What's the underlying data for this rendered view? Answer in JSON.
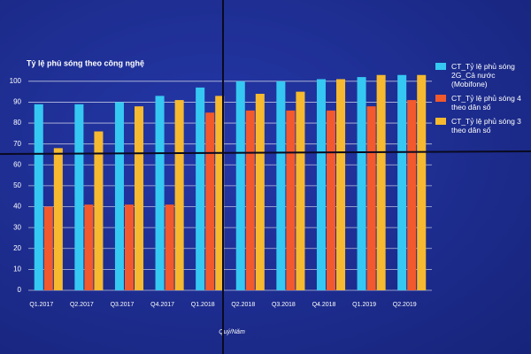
{
  "chart_data": {
    "type": "bar",
    "title": "Tỷ lệ phủ sóng theo công nghệ",
    "x_label": "Quý/Năm",
    "categories": [
      "Q1.2017",
      "Q2.2017",
      "Q3.2017",
      "Q4.2017",
      "Q1.2018",
      "Q2.2018",
      "Q3.2018",
      "Q4.2018",
      "Q1.2019",
      "Q2.2019"
    ],
    "series": [
      {
        "name": "CT_Tỷ lệ phủ sóng 2G_Cả nước (Mobifone)",
        "color": "#35c8f2",
        "values": [
          89,
          89,
          90,
          93,
          97,
          100,
          100,
          101,
          102,
          103
        ]
      },
      {
        "name": "CT_Tỷ lệ phủ sóng 4 theo dân số",
        "color": "#f2592c",
        "values": [
          40,
          41,
          41,
          41,
          85,
          86,
          86,
          86,
          88,
          91
        ]
      },
      {
        "name": "CT_Tỷ lệ phủ sóng 3 theo dân số",
        "color": "#f6b92f",
        "values": [
          68,
          76,
          88,
          91,
          93,
          94,
          95,
          101,
          103,
          103
        ]
      }
    ],
    "ylim": [
      0,
      105
    ],
    "yticks": [
      0,
      10,
      20,
      30,
      40,
      50,
      60,
      70,
      80,
      90,
      100
    ],
    "grid": true,
    "legend": "right"
  }
}
